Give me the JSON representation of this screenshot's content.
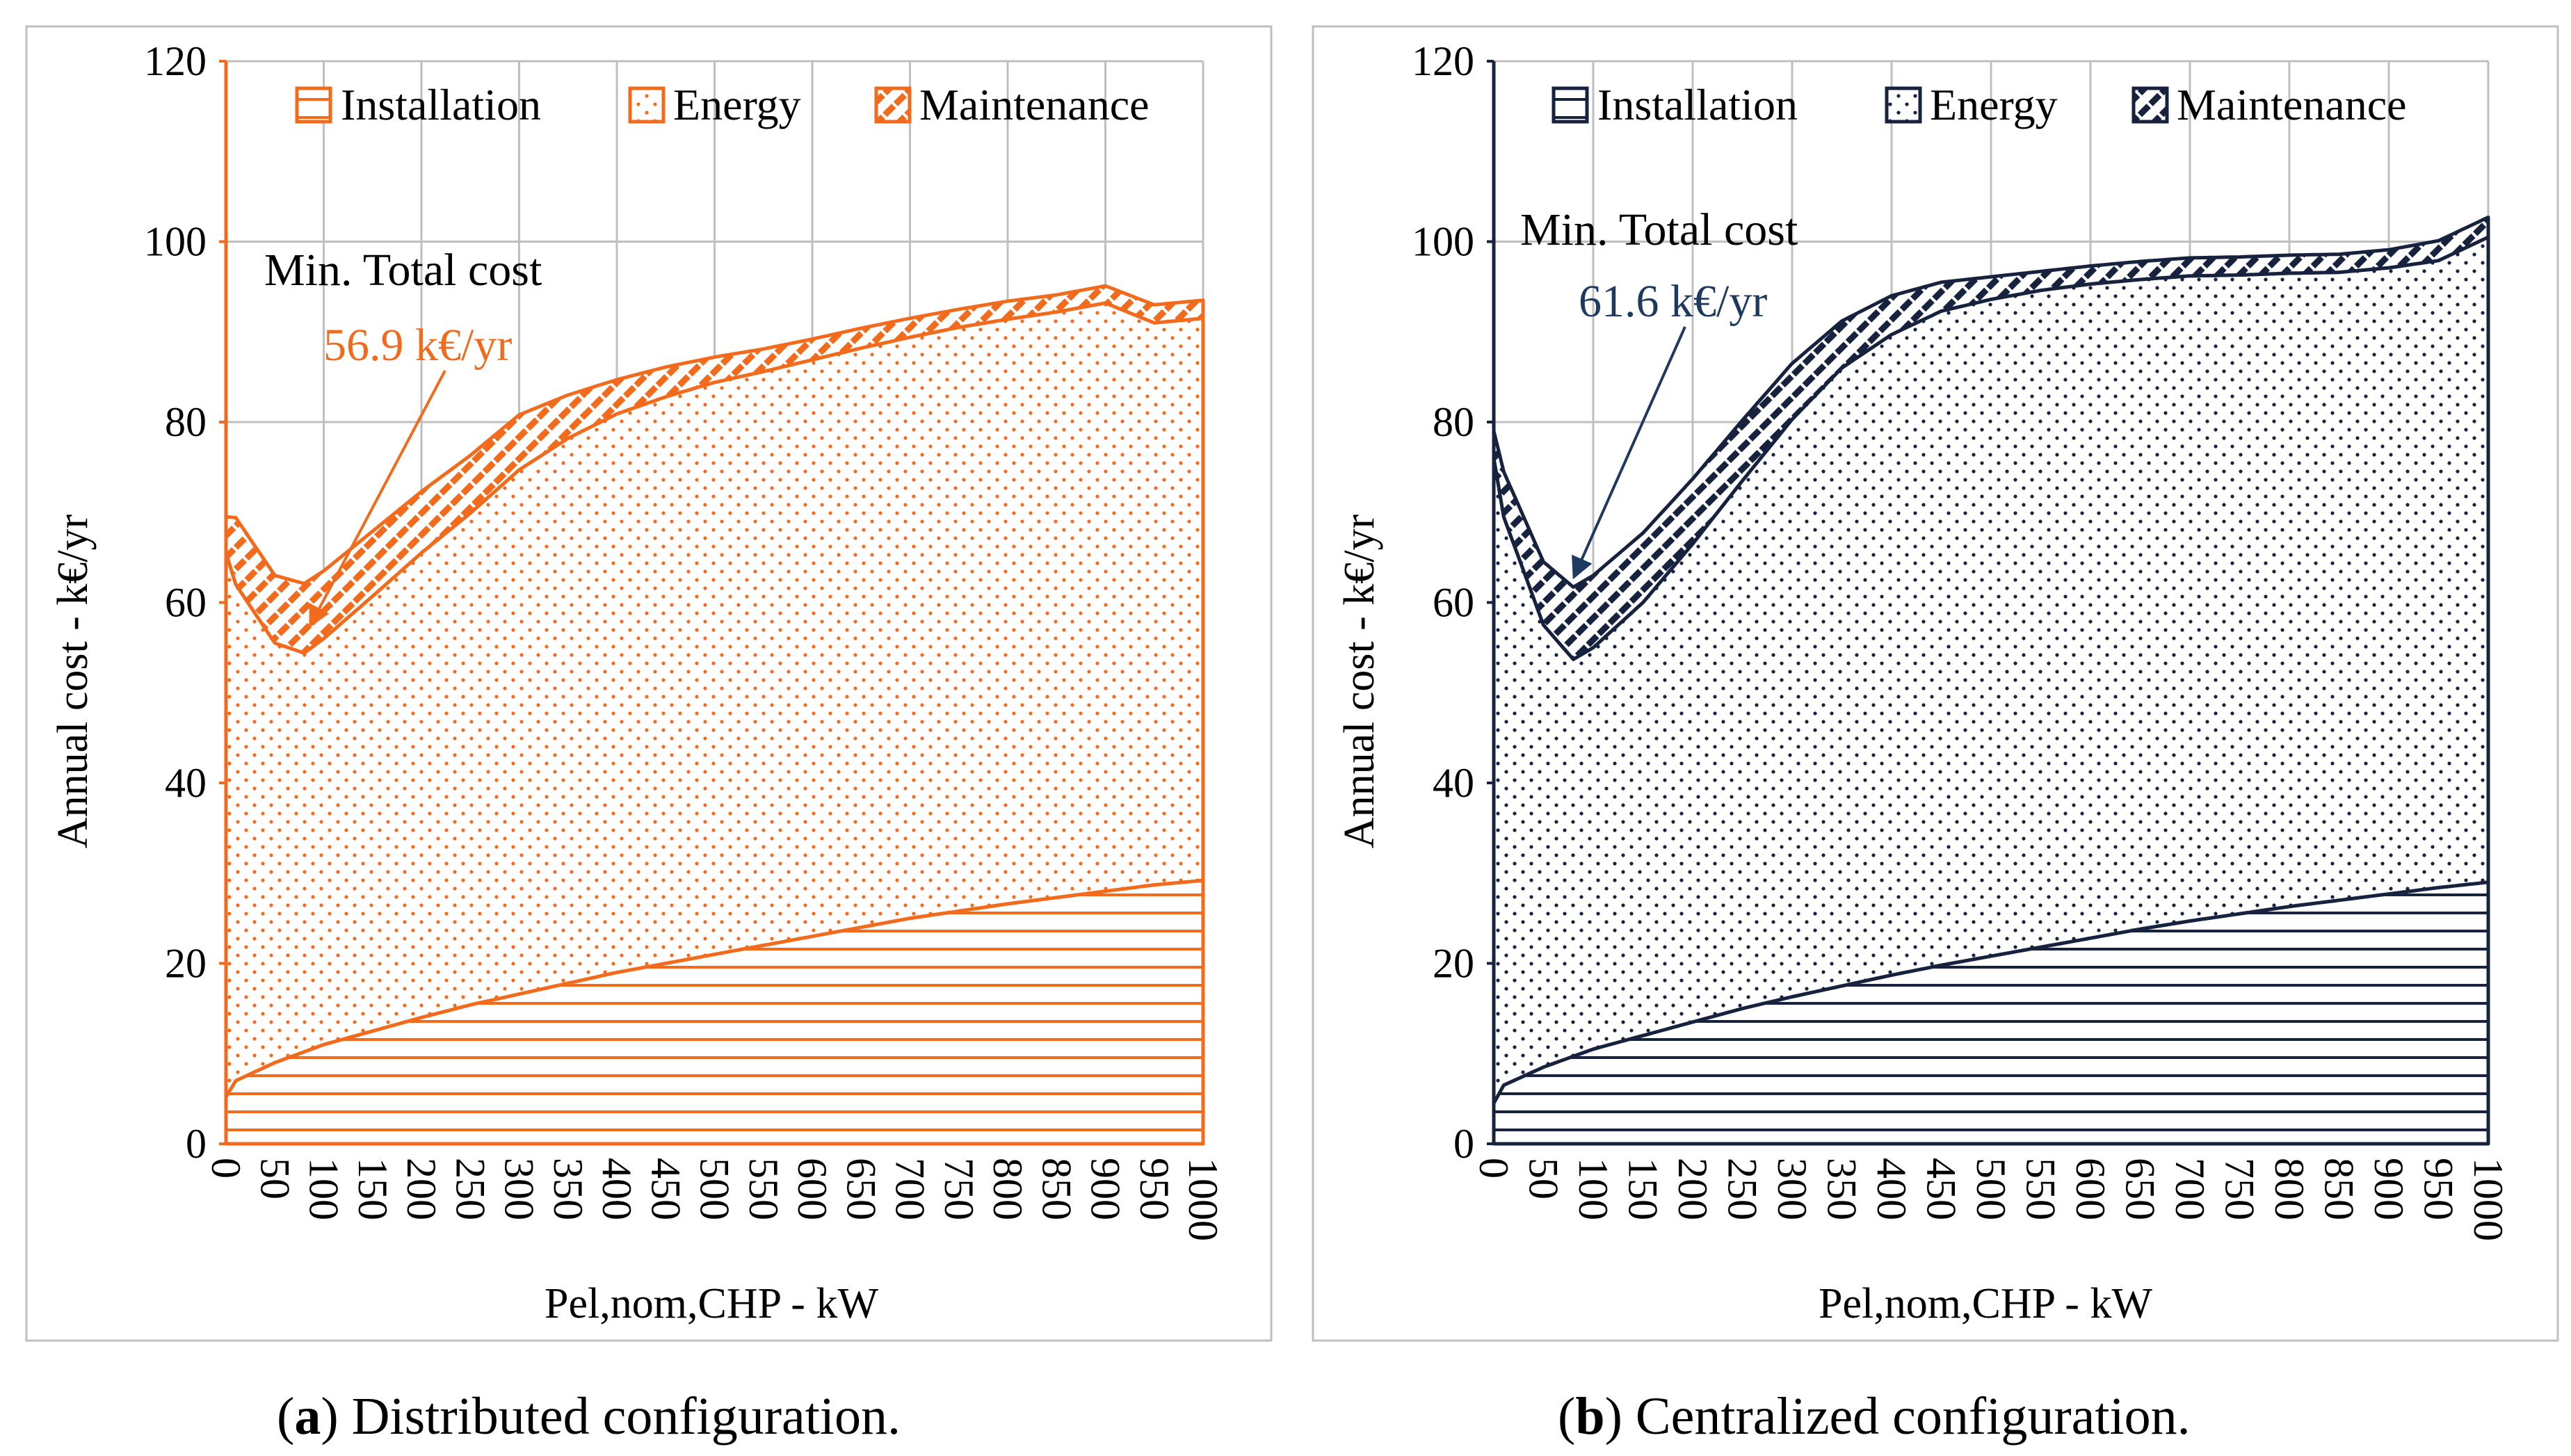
{
  "colors": {
    "a": "#F26B1D",
    "b": "#17223F",
    "b_annotation": "#1F3A5F",
    "grid": "#BFBFBF",
    "frame": "#BFBFBF"
  },
  "chart_data": [
    {
      "type": "area",
      "stacked": true,
      "caption_label": "a",
      "caption_text": ") Distributed configuration.",
      "xlabel": "Pel,nom,CHP - kW",
      "ylabel": "Annual cost - k€/yr",
      "ylim": [
        0,
        120
      ],
      "xlim": [
        0,
        1000
      ],
      "yticks": [
        "0",
        "20",
        "40",
        "60",
        "80",
        "100",
        "120"
      ],
      "xticks": [
        "0",
        "50",
        "100",
        "150",
        "200",
        "250",
        "300",
        "350",
        "400",
        "450",
        "500",
        "550",
        "600",
        "650",
        "700",
        "750",
        "800",
        "850",
        "900",
        "950",
        "1000"
      ],
      "grid": true,
      "legend": [
        "Installation",
        "Energy",
        "Maintenance"
      ],
      "legend_position": "top",
      "annotation": {
        "title": "Min. Total cost",
        "value": "56.9 k€/yr",
        "x": 80,
        "y": 56.9
      },
      "series": [
        {
          "name": "Installation",
          "pattern": "horizontal-lines",
          "x": [
            0,
            10,
            50,
            100,
            150,
            200,
            250,
            300,
            350,
            400,
            450,
            500,
            550,
            600,
            650,
            700,
            750,
            800,
            850,
            900,
            950,
            1000
          ],
          "values": [
            5.2,
            7,
            9,
            11,
            12.5,
            14,
            15.4,
            16.6,
            17.8,
            19,
            20,
            21,
            22,
            23,
            24,
            25,
            25.8,
            26.6,
            27.3,
            28,
            28.7,
            29.2
          ]
        },
        {
          "name": "Energy",
          "pattern": "dots",
          "x": [
            0,
            10,
            50,
            80,
            100,
            150,
            200,
            250,
            300,
            350,
            400,
            450,
            500,
            550,
            600,
            650,
            700,
            750,
            800,
            850,
            900,
            950,
            1000
          ],
          "values": [
            60.3,
            55,
            46.5,
            44.2,
            45,
            48.2,
            51.5,
            54.5,
            58.1,
            60.4,
            61.9,
            62.8,
            63.4,
            63.6,
            63.9,
            64.2,
            64.4,
            64.7,
            64.8,
            64.9,
            65.2,
            62.3,
            62.3
          ]
        },
        {
          "name": "Maintenance",
          "pattern": "diagonal-checker",
          "x": [
            0,
            10,
            50,
            80,
            100,
            150,
            200,
            250,
            300,
            350,
            400,
            450,
            500,
            550,
            600,
            650,
            700,
            750,
            800,
            850,
            900,
            950,
            1000
          ],
          "values": [
            4.0,
            7.4,
            7.5,
            7.7,
            7.5,
            7.2,
            6.8,
            6.4,
            6.1,
            4.8,
            3.8,
            3.3,
            2.8,
            2.5,
            2.3,
            2.2,
            2.1,
            2.0,
            2.0,
            1.9,
            1.9,
            2.0,
            2.0
          ]
        }
      ]
    },
    {
      "type": "area",
      "stacked": true,
      "caption_label": "b",
      "caption_text": ") Centralized configuration.",
      "xlabel": "Pel,nom,CHP - kW",
      "ylabel": "Annual cost - k€/yr",
      "ylim": [
        0,
        120
      ],
      "xlim": [
        0,
        1000
      ],
      "yticks": [
        "0",
        "20",
        "40",
        "60",
        "80",
        "100",
        "120"
      ],
      "xticks": [
        "0",
        "50",
        "100",
        "150",
        "200",
        "250",
        "300",
        "350",
        "400",
        "450",
        "500",
        "550",
        "600",
        "650",
        "700",
        "750",
        "800",
        "850",
        "900",
        "950",
        "1000"
      ],
      "grid": true,
      "legend": [
        "Installation",
        "Energy",
        "Maintenance"
      ],
      "legend_position": "top",
      "annotation": {
        "title": "Min. Total cost",
        "value": "61.6 k€/yr",
        "x": 80,
        "y": 61.6
      },
      "series": [
        {
          "name": "Installation",
          "pattern": "horizontal-lines",
          "x": [
            0,
            10,
            50,
            100,
            150,
            200,
            250,
            300,
            350,
            400,
            450,
            500,
            550,
            600,
            650,
            700,
            750,
            800,
            850,
            900,
            950,
            1000
          ],
          "values": [
            4.5,
            6.5,
            8.5,
            10.5,
            12,
            13.5,
            15,
            16.3,
            17.5,
            18.7,
            19.8,
            20.8,
            21.8,
            22.8,
            23.8,
            24.7,
            25.5,
            26.3,
            27,
            27.7,
            28.4,
            29
          ]
        },
        {
          "name": "Energy",
          "pattern": "dots",
          "x": [
            0,
            10,
            50,
            80,
            100,
            150,
            200,
            250,
            300,
            350,
            400,
            450,
            500,
            550,
            600,
            650,
            700,
            750,
            800,
            850,
            900,
            950,
            1000
          ],
          "values": [
            71.5,
            63,
            49,
            44,
            44.5,
            48,
            53,
            58.5,
            64,
            68.5,
            71,
            72.5,
            72.8,
            72.8,
            72.5,
            72,
            71.5,
            70.8,
            70.2,
            69.6,
            69.4,
            69.5,
            71.5
          ]
        },
        {
          "name": "Maintenance",
          "pattern": "diagonal-checker",
          "x": [
            0,
            10,
            50,
            80,
            100,
            150,
            200,
            250,
            300,
            350,
            400,
            450,
            500,
            550,
            600,
            650,
            700,
            750,
            800,
            850,
            900,
            950,
            1000
          ],
          "values": [
            3.0,
            5.0,
            7.0,
            8.0,
            8.0,
            7.7,
            7.2,
            6.7,
            6.2,
            5.2,
            4.3,
            3.2,
            2.5,
            2.1,
            2.0,
            2.0,
            2.0,
            2.0,
            2.0,
            2.0,
            2.0,
            2.2,
            2.2
          ]
        }
      ]
    }
  ]
}
